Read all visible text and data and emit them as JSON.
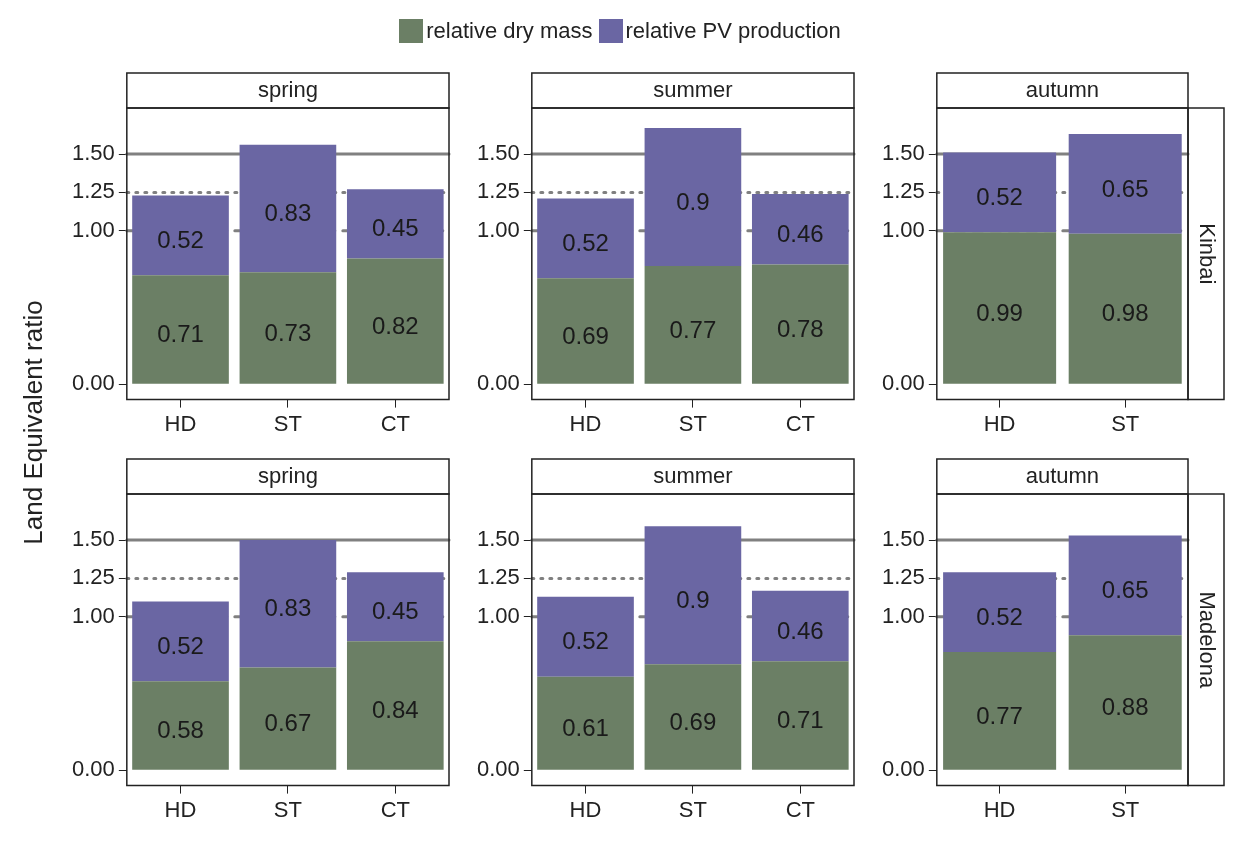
{
  "chart_data": [
    {
      "type": "bar",
      "title": "spring",
      "ylabel": "Land Equivalent ratio",
      "legend": "top",
      "stacked": true,
      "data_labels": true,
      "categories": [
        "HD",
        "ST",
        "CT"
      ],
      "ylim": [
        -0.1,
        1.8
      ],
      "yticks": [
        {
          "value": 0,
          "label": "0.00"
        },
        {
          "value": 1,
          "label": "1.00"
        },
        {
          "value": 1.25,
          "label": "1.25"
        },
        {
          "value": 1.5,
          "label": "1.50"
        }
      ],
      "grid": false,
      "series": [
        {
          "name": "relative dry mass",
          "color": "#6b7f65",
          "values": [
            0.71,
            0.73,
            0.82
          ]
        },
        {
          "name": "relative PV production",
          "color": "#6a66a3",
          "values": [
            0.52,
            0.83,
            0.45
          ]
        }
      ],
      "ref_lines": [
        {
          "axis": "y",
          "value": 1.5,
          "color": "#808080",
          "line_style": "solid"
        },
        {
          "axis": "y",
          "value": 1.25,
          "color": "#808080",
          "line_style": "dotted"
        },
        {
          "axis": "y",
          "value": 1,
          "color": "#808080",
          "line_style": "dashed"
        }
      ]
    },
    {
      "type": "bar",
      "title": "summer",
      "stacked": true,
      "data_labels": true,
      "categories": [
        "HD",
        "ST",
        "CT"
      ],
      "ylim": [
        -0.1,
        1.8
      ],
      "yticks": [
        {
          "value": 0,
          "label": "0.00"
        },
        {
          "value": 1,
          "label": "1.00"
        },
        {
          "value": 1.25,
          "label": "1.25"
        },
        {
          "value": 1.5,
          "label": "1.50"
        }
      ],
      "grid": false,
      "series": [
        {
          "color": "#6b7f65",
          "values": [
            0.69,
            0.77,
            0.78
          ]
        },
        {
          "color": "#6a66a3",
          "values": [
            0.52,
            0.9,
            0.46
          ]
        }
      ],
      "ref_lines": [
        {
          "axis": "y",
          "value": 1.5,
          "color": "#808080",
          "line_style": "solid"
        },
        {
          "axis": "y",
          "value": 1.25,
          "color": "#808080",
          "line_style": "dotted"
        },
        {
          "axis": "y",
          "value": 1,
          "color": "#808080",
          "line_style": "dashed"
        }
      ]
    },
    {
      "type": "bar",
      "title": "autumn",
      "stacked": true,
      "data_labels": true,
      "categories": [
        "HD",
        "ST"
      ],
      "ylim": [
        -0.1,
        1.8
      ],
      "yticks": [
        {
          "value": 0,
          "label": "0.00"
        },
        {
          "value": 1,
          "label": "1.00"
        },
        {
          "value": 1.25,
          "label": "1.25"
        },
        {
          "value": 1.5,
          "label": "1.50"
        }
      ],
      "grid": false,
      "annotations": [
        "Kinbai"
      ],
      "series": [
        {
          "color": "#6b7f65",
          "values": [
            0.99,
            0.98
          ]
        },
        {
          "color": "#6a66a3",
          "values": [
            0.52,
            0.65
          ]
        }
      ],
      "ref_lines": [
        {
          "axis": "y",
          "value": 1.5,
          "color": "#808080",
          "line_style": "solid"
        },
        {
          "axis": "y",
          "value": 1.25,
          "color": "#808080",
          "line_style": "dotted"
        },
        {
          "axis": "y",
          "value": 1,
          "color": "#808080",
          "line_style": "dashed"
        }
      ]
    },
    {
      "type": "bar",
      "title": "spring",
      "stacked": true,
      "data_labels": true,
      "categories": [
        "HD",
        "ST",
        "CT"
      ],
      "ylim": [
        -0.1,
        1.8
      ],
      "yticks": [
        {
          "value": 0,
          "label": "0.00"
        },
        {
          "value": 1,
          "label": "1.00"
        },
        {
          "value": 1.25,
          "label": "1.25"
        },
        {
          "value": 1.5,
          "label": "1.50"
        }
      ],
      "grid": false,
      "series": [
        {
          "color": "#6b7f65",
          "values": [
            0.58,
            0.67,
            0.84
          ]
        },
        {
          "color": "#6a66a3",
          "values": [
            0.52,
            0.83,
            0.45
          ]
        }
      ],
      "ref_lines": [
        {
          "axis": "y",
          "value": 1.5,
          "color": "#808080",
          "line_style": "solid"
        },
        {
          "axis": "y",
          "value": 1.25,
          "color": "#808080",
          "line_style": "dotted"
        },
        {
          "axis": "y",
          "value": 1,
          "color": "#808080",
          "line_style": "dashed"
        }
      ]
    },
    {
      "type": "bar",
      "title": "summer",
      "stacked": true,
      "data_labels": true,
      "categories": [
        "HD",
        "ST",
        "CT"
      ],
      "ylim": [
        -0.1,
        1.8
      ],
      "yticks": [
        {
          "value": 0,
          "label": "0.00"
        },
        {
          "value": 1,
          "label": "1.00"
        },
        {
          "value": 1.25,
          "label": "1.25"
        },
        {
          "value": 1.5,
          "label": "1.50"
        }
      ],
      "grid": false,
      "series": [
        {
          "color": "#6b7f65",
          "values": [
            0.61,
            0.69,
            0.71
          ]
        },
        {
          "color": "#6a66a3",
          "values": [
            0.52,
            0.9,
            0.46
          ]
        }
      ],
      "ref_lines": [
        {
          "axis": "y",
          "value": 1.5,
          "color": "#808080",
          "line_style": "solid"
        },
        {
          "axis": "y",
          "value": 1.25,
          "color": "#808080",
          "line_style": "dotted"
        },
        {
          "axis": "y",
          "value": 1,
          "color": "#808080",
          "line_style": "dashed"
        }
      ]
    },
    {
      "type": "bar",
      "title": "autumn",
      "stacked": true,
      "data_labels": true,
      "categories": [
        "HD",
        "ST"
      ],
      "ylim": [
        -0.1,
        1.8
      ],
      "yticks": [
        {
          "value": 0,
          "label": "0.00"
        },
        {
          "value": 1,
          "label": "1.00"
        },
        {
          "value": 1.25,
          "label": "1.25"
        },
        {
          "value": 1.5,
          "label": "1.50"
        }
      ],
      "grid": false,
      "annotations": [
        "Madelona"
      ],
      "series": [
        {
          "color": "#6b7f65",
          "values": [
            0.77,
            0.88
          ]
        },
        {
          "color": "#6a66a3",
          "values": [
            0.52,
            0.65
          ]
        }
      ],
      "ref_lines": [
        {
          "axis": "y",
          "value": 1.5,
          "color": "#808080",
          "line_style": "solid"
        },
        {
          "axis": "y",
          "value": 1.25,
          "color": "#808080",
          "line_style": "dotted"
        },
        {
          "axis": "y",
          "value": 1,
          "color": "#808080",
          "line_style": "dashed"
        }
      ]
    }
  ]
}
